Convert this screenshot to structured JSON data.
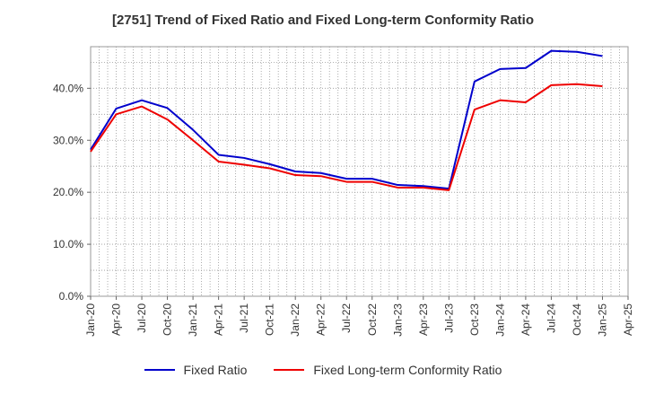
{
  "chart_data": {
    "type": "line",
    "title": "[2751]  Trend of Fixed Ratio and Fixed Long-term Conformity Ratio",
    "xlabel": "",
    "ylabel": "",
    "x_ticks": [
      "Jan-20",
      "Apr-20",
      "Jul-20",
      "Oct-20",
      "Jan-21",
      "Apr-21",
      "Jul-21",
      "Oct-21",
      "Jan-22",
      "Apr-22",
      "Jul-22",
      "Oct-22",
      "Jan-23",
      "Apr-23",
      "Jul-23",
      "Oct-23",
      "Jan-24",
      "Apr-24",
      "Jul-24",
      "Oct-24",
      "Jan-25",
      "Apr-25"
    ],
    "y_ticks": [
      "0.0%",
      "10.0%",
      "20.0%",
      "30.0%",
      "40.0%"
    ],
    "ylim": [
      0,
      48
    ],
    "grid": true,
    "legend_position": "bottom",
    "x": [
      "Jan-20",
      "Apr-20",
      "Jul-20",
      "Oct-20",
      "Jan-21",
      "Apr-21",
      "Jul-21",
      "Oct-21",
      "Jan-22",
      "Apr-22",
      "Jul-22",
      "Oct-22",
      "Jan-23",
      "Apr-23",
      "Jul-23",
      "Oct-23",
      "Jan-24",
      "Apr-24",
      "Jul-24",
      "Oct-24",
      "Jan-25"
    ],
    "series": [
      {
        "name": "Fixed Ratio",
        "color": "#0000cc",
        "values": [
          28.2,
          36.1,
          37.7,
          36.2,
          32.0,
          27.2,
          26.6,
          25.4,
          24.0,
          23.7,
          22.6,
          22.6,
          21.4,
          21.2,
          20.7,
          41.3,
          43.7,
          43.9,
          47.2,
          47.0,
          46.2
        ]
      },
      {
        "name": "Fixed Long-term Conformity Ratio",
        "color": "#ee0000",
        "values": [
          27.8,
          35.0,
          36.5,
          34.0,
          30.0,
          25.9,
          25.3,
          24.6,
          23.3,
          23.1,
          22.0,
          22.0,
          20.9,
          20.9,
          20.4,
          35.9,
          37.7,
          37.3,
          40.6,
          40.8,
          40.4
        ]
      }
    ]
  }
}
